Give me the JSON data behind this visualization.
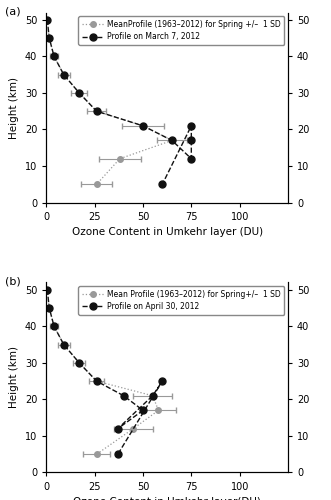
{
  "panel_a": {
    "label": "(a)",
    "xlabel": "Ozone Content in Umkehr layer (DU)",
    "ylabel": "Height (km)",
    "xlim": [
      0,
      125
    ],
    "ylim": [
      0,
      52
    ],
    "xticks": [
      0,
      25,
      50,
      75,
      100
    ],
    "yticks": [
      0,
      10,
      20,
      30,
      40,
      50
    ],
    "legend_entries": [
      "MeanProfile (1963–2012) for Spring +/–  1 SD",
      "Profile on March 7, 2012"
    ],
    "mean_x": [
      0.5,
      1.5,
      4.0,
      9.0,
      17.0,
      26.0,
      50.0,
      65.0,
      38.0,
      26.0
    ],
    "mean_y": [
      50,
      45,
      40,
      35,
      30,
      25,
      21,
      17,
      12,
      5
    ],
    "mean_xerr": [
      0.5,
      1.0,
      2.0,
      3.0,
      4.0,
      5.0,
      11.0,
      8.0,
      11.0,
      8.0
    ],
    "profile_x": [
      0.5,
      1.5,
      4.0,
      9.0,
      17.0,
      26.0,
      50.0,
      65.0,
      75.0,
      75.0,
      75.0,
      60.0
    ],
    "profile_y": [
      50,
      45,
      40,
      35,
      30,
      25,
      21,
      17,
      12,
      17,
      21,
      5
    ]
  },
  "panel_b": {
    "label": "(b)",
    "xlabel": "Ozone Content in Umkehr layer(DU)",
    "ylabel": "Height (km)",
    "xlim": [
      0,
      125
    ],
    "ylim": [
      0,
      52
    ],
    "xticks": [
      0,
      25,
      50,
      75,
      100
    ],
    "yticks": [
      0,
      10,
      20,
      30,
      40,
      50
    ],
    "legend_entries": [
      "Mean Profile (1963–2012) for Spring+/–  1 SD",
      "Profile on April 30, 2012"
    ],
    "mean_x": [
      0.5,
      1.5,
      4.0,
      9.0,
      17.0,
      26.0,
      55.0,
      58.0,
      45.0,
      26.0
    ],
    "mean_y": [
      50,
      45,
      40,
      35,
      30,
      25,
      21,
      17,
      12,
      5
    ],
    "mean_xerr": [
      0.5,
      1.0,
      2.0,
      3.0,
      3.0,
      4.0,
      10.0,
      9.0,
      10.0,
      7.0
    ],
    "profile_x": [
      0.5,
      1.5,
      4.0,
      9.0,
      17.0,
      26.0,
      40.0,
      50.0,
      37.0,
      55.0,
      60.0,
      37.0
    ],
    "profile_y": [
      50,
      45,
      40,
      35,
      30,
      25,
      21,
      17,
      12,
      21,
      25,
      5
    ]
  },
  "mean_color": "#999999",
  "mean_marker": "o",
  "mean_markersize": 4,
  "profile_color": "#111111",
  "profile_marker": "o",
  "profile_markersize": 5,
  "mean_linestyle": "dotted",
  "profile_linestyle": "dashed",
  "errorbar_color": "#999999",
  "fig_width": 3.31,
  "fig_height": 5.0,
  "dpi": 100
}
